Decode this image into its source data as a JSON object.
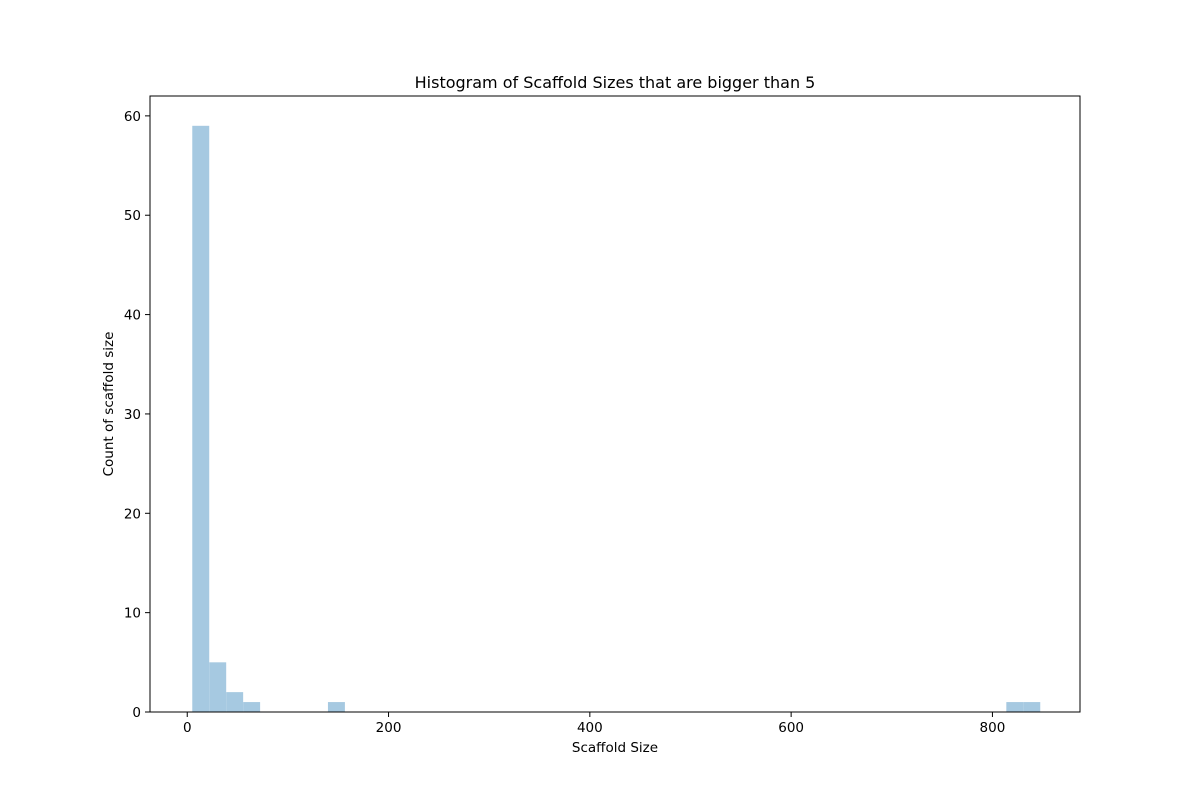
{
  "chart_data": {
    "type": "bar",
    "title": "Histogram of Scaffold Sizes that are bigger than 5",
    "xlabel": "Scaffold Size",
    "ylabel": "Count of scaffold size",
    "xlim": [
      -37,
      887
    ],
    "ylim": [
      0,
      62
    ],
    "xticks": [
      0,
      200,
      400,
      600,
      800
    ],
    "yticks": [
      0,
      10,
      20,
      30,
      40,
      50,
      60
    ],
    "bin_width": 16.85,
    "bins": [
      {
        "x0": 5.0,
        "x1": 21.85,
        "count": 59
      },
      {
        "x0": 21.85,
        "x1": 38.7,
        "count": 5
      },
      {
        "x0": 38.7,
        "x1": 55.55,
        "count": 2
      },
      {
        "x0": 55.55,
        "x1": 72.4,
        "count": 1
      },
      {
        "x0": 139.8,
        "x1": 156.65,
        "count": 1
      },
      {
        "x0": 813.8,
        "x1": 830.65,
        "count": 1
      },
      {
        "x0": 830.65,
        "x1": 847.5,
        "count": 1
      }
    ],
    "bar_color": "#a6c9e1",
    "grid": false,
    "legend": "none"
  }
}
